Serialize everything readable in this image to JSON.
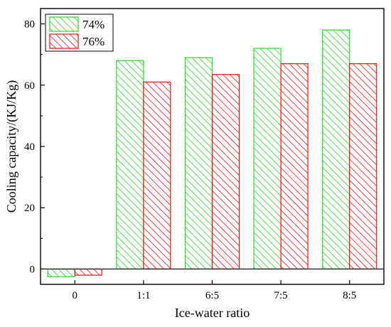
{
  "chart_data": {
    "type": "bar",
    "title": "",
    "xlabel": "Ice-water ratio",
    "ylabel": "Cooling capacity/(KJ/Kg)",
    "categories": [
      "0",
      "1:1",
      "6:5",
      "7:5",
      "8:5"
    ],
    "series": [
      {
        "name": "74%",
        "values": [
          -2.5,
          68,
          69,
          72,
          78
        ],
        "color": "#22dd22",
        "pattern": "diagonal-hatch"
      },
      {
        "name": "76%",
        "values": [
          -2,
          61,
          63.5,
          67,
          67
        ],
        "color": "#ee1111",
        "pattern": "diagonal-hatch"
      }
    ],
    "ylim": [
      -5,
      85
    ],
    "yticks": [
      "0",
      "20",
      "40",
      "60",
      "80"
    ],
    "grid": false,
    "legend_position": "top-left"
  }
}
